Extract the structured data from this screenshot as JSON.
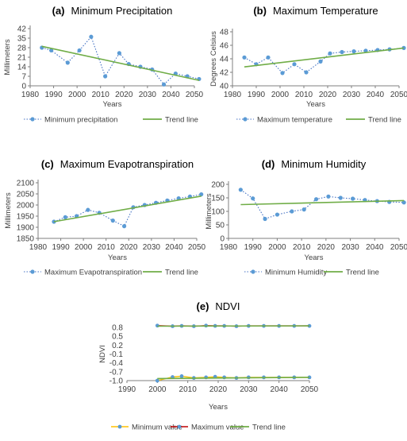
{
  "colors": {
    "dotted_series": "#4472C4",
    "marker": "#5B9BD5",
    "trend": "#70AD47",
    "ndvi_min": "#FFC000",
    "ndvi_max": "#C00000",
    "axis": "#7F7F7F",
    "text": "#404040"
  },
  "chart_data": [
    {
      "id": "precip",
      "type": "line",
      "panel_label": "(a)",
      "title": "Minimum Precipitation",
      "xlabel": "Years",
      "ylabel": "Millimeters",
      "xlim": [
        1980,
        2050
      ],
      "ylim": [
        0,
        42
      ],
      "xticks": [
        "1980",
        "1990",
        "2000",
        "2010",
        "2020",
        "2030",
        "2040",
        "2050"
      ],
      "yticks": [
        "0",
        "7",
        "14",
        "21",
        "28",
        "35",
        "42"
      ],
      "series": [
        {
          "name": "Minimum precipitation",
          "style": "dotted",
          "x": [
            1985,
            1989,
            1996,
            2001,
            2006,
            2012,
            2018,
            2022,
            2027,
            2032,
            2037,
            2042,
            2047,
            2052
          ],
          "y": [
            28,
            26,
            17,
            26,
            36,
            7,
            24,
            16,
            14,
            12,
            1,
            9,
            7,
            5
          ]
        },
        {
          "name": "Trend line",
          "style": "trend",
          "x": [
            1985,
            2052
          ],
          "y": [
            29,
            4
          ]
        }
      ],
      "legend": [
        "Minimum precipitation",
        "Trend line"
      ]
    },
    {
      "id": "temp",
      "type": "line",
      "panel_label": "(b)",
      "title": "Maximum Temperature",
      "xlabel": "Years",
      "ylabel": "Degrees Celsius",
      "xlim": [
        1980,
        2050
      ],
      "ylim": [
        40,
        48
      ],
      "xticks": [
        "1980",
        "1990",
        "2000",
        "2010",
        "2020",
        "2030",
        "2040",
        "2050"
      ],
      "yticks": [
        "40",
        "42",
        "44",
        "46",
        "48"
      ],
      "series": [
        {
          "name": "Maximum temperature",
          "style": "dotted",
          "x": [
            1985,
            1990,
            1995,
            2001,
            2006,
            2011,
            2017,
            2021,
            2026,
            2031,
            2036,
            2041,
            2046,
            2052
          ],
          "y": [
            44.2,
            43.2,
            44.2,
            41.9,
            43.2,
            42.0,
            43.6,
            44.8,
            45.0,
            45.1,
            45.2,
            45.3,
            45.4,
            45.6
          ]
        },
        {
          "name": "Trend line",
          "style": "trend",
          "x": [
            1985,
            2052
          ],
          "y": [
            42.8,
            45.6
          ]
        }
      ],
      "legend": [
        "Maximum temperature",
        "Trend line"
      ]
    },
    {
      "id": "evap",
      "type": "line",
      "panel_label": "(c)",
      "title": "Maximum Evapotranspiration",
      "xlabel": "Years",
      "ylabel": "Millimeters",
      "xlim": [
        1980,
        2050
      ],
      "ylim": [
        1850,
        2100
      ],
      "xticks": [
        "1980",
        "1990",
        "2000",
        "2010",
        "2020",
        "2030",
        "2040",
        "2050"
      ],
      "yticks": [
        "1850",
        "1900",
        "1950",
        "2000",
        "2050",
        "2100"
      ],
      "series": [
        {
          "name": "Maximum Evapotranspiration",
          "style": "dotted",
          "x": [
            1987,
            1992,
            1997,
            2002,
            2007,
            2013,
            2018,
            2022,
            2027,
            2032,
            2037,
            2042,
            2047,
            2052
          ],
          "y": [
            1925,
            1945,
            1950,
            1978,
            1965,
            1930,
            1905,
            1990,
            2000,
            2010,
            2020,
            2030,
            2038,
            2048
          ]
        },
        {
          "name": "Trend line",
          "style": "trend",
          "x": [
            1987,
            2052
          ],
          "y": [
            1925,
            2040
          ]
        }
      ],
      "legend": [
        "Maximum Evapotranspiration",
        "Trend line"
      ]
    },
    {
      "id": "humid",
      "type": "line",
      "panel_label": "(d)",
      "title": "Minimum Humidity",
      "xlabel": "Years",
      "ylabel": "Millimeters",
      "xlim": [
        1980,
        2050
      ],
      "ylim": [
        0,
        200
      ],
      "xticks": [
        "1980",
        "1990",
        "2000",
        "2010",
        "2020",
        "2030",
        "2040",
        "2050"
      ],
      "yticks": [
        "0",
        "50",
        "100",
        "150",
        "200"
      ],
      "series": [
        {
          "name": "Minimum Humidity",
          "style": "dotted",
          "x": [
            1985,
            1990,
            1995,
            2000,
            2006,
            2011,
            2016,
            2021,
            2026,
            2031,
            2036,
            2041,
            2046,
            2052
          ],
          "y": [
            180,
            148,
            72,
            88,
            100,
            107,
            145,
            155,
            150,
            147,
            142,
            138,
            135,
            133
          ]
        },
        {
          "name": "Trend line",
          "style": "trend",
          "x": [
            1985,
            2052
          ],
          "y": [
            125,
            140
          ]
        }
      ],
      "legend": [
        "Minimum Humidity",
        "Trend line"
      ]
    },
    {
      "id": "ndvi",
      "type": "line",
      "panel_label": "(e)",
      "title": "NDVI",
      "xlabel": "Years",
      "ylabel": "NDVI",
      "xlim": [
        1990,
        2050
      ],
      "ylim": [
        -1.0,
        0.8
      ],
      "xticks": [
        "1990",
        "2000",
        "2010",
        "2020",
        "2030",
        "2040",
        "2050"
      ],
      "yticks": [
        "0.8",
        "0.5",
        "0.2",
        "-0.1",
        "-0.4",
        "-0.7",
        "-1.0"
      ],
      "series": [
        {
          "name": "Minimum value",
          "style": "solid-min",
          "x": [
            2000,
            2005,
            2008,
            2012,
            2016,
            2019,
            2022,
            2026,
            2030,
            2035,
            2040,
            2045,
            2050
          ],
          "y": [
            -1.0,
            -0.88,
            -0.85,
            -0.91,
            -0.89,
            -0.87,
            -0.89,
            -0.91,
            -0.89,
            -0.89,
            -0.89,
            -0.89,
            -0.89
          ]
        },
        {
          "name": "Maximum value",
          "style": "solid-max",
          "x": [
            2000,
            2005,
            2008,
            2012,
            2016,
            2019,
            2022,
            2026,
            2030,
            2035,
            2040,
            2045,
            2050
          ],
          "y": [
            0.86,
            0.84,
            0.85,
            0.84,
            0.86,
            0.85,
            0.85,
            0.84,
            0.85,
            0.85,
            0.85,
            0.85,
            0.85
          ]
        },
        {
          "name": "Trend line",
          "style": "trend",
          "x": [
            2000,
            2050
          ],
          "y": [
            0.84,
            0.85
          ]
        },
        {
          "name": "Trend line",
          "style": "trend-nolegend",
          "x": [
            2000,
            2050
          ],
          "y": [
            -0.93,
            -0.89
          ]
        }
      ],
      "legend": [
        "Minimum value",
        "Maximum value",
        "Trend line"
      ]
    }
  ]
}
